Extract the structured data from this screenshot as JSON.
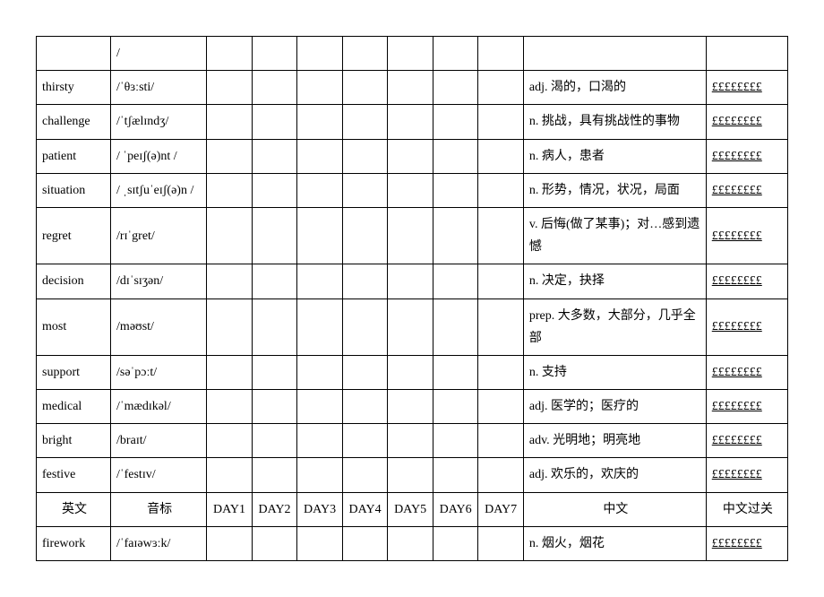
{
  "headers": {
    "english": "英文",
    "ipa": "音标",
    "day1": "DAY1",
    "day2": "DAY2",
    "day3": "DAY3",
    "day4": "DAY4",
    "day5": "DAY5",
    "day6": "DAY6",
    "day7": "DAY7",
    "chinese": "中文",
    "pass": "中文过关"
  },
  "pass_placeholder": "££££££££",
  "rows": {
    "top": {
      "en": "",
      "ipa": "/",
      "cn": ""
    },
    "thirsty": {
      "en": "thirsty",
      "ipa": "/ˈθɜːsti/",
      "cn": "adj. 渴的，口渴的"
    },
    "challenge": {
      "en": "challenge",
      "ipa": "/ˈtʃælɪndʒ/",
      "cn": "n. 挑战，具有挑战性的事物"
    },
    "patient": {
      "en": "patient",
      "ipa": "/ ˈpeɪʃ(ə)nt /",
      "cn": "n. 病人，患者"
    },
    "situation": {
      "en": "situation",
      "ipa": "/ ˌsɪtʃuˈeɪʃ(ə)n /",
      "cn": "n. 形势，情况，状况，局面"
    },
    "regret": {
      "en": "regret",
      "ipa": "/rɪˈgret/",
      "cn": "v. 后悔(做了某事)；对…感到遗憾"
    },
    "decision": {
      "en": "decision",
      "ipa": "/dɪˈsɪʒən/",
      "cn": "n. 决定，抉择"
    },
    "most": {
      "en": "most",
      "ipa": "/məʊst/",
      "cn": "prep. 大多数，大部分，几乎全部"
    },
    "support": {
      "en": "support",
      "ipa": "/səˈpɔːt/",
      "cn": "n. 支持"
    },
    "medical": {
      "en": "medical",
      "ipa": "/ˈmædɪkəl/",
      "cn": "adj. 医学的；医疗的"
    },
    "bright": {
      "en": "bright",
      "ipa": "/braɪt/",
      "cn": "adv. 光明地；明亮地"
    },
    "festive": {
      "en": "festive",
      "ipa": "/ˈfestɪv/",
      "cn": "adj. 欢乐的，欢庆的"
    },
    "firework": {
      "en": "firework",
      "ipa": "/ˈfaɪəwɜːk/",
      "cn": "n. 烟火，烟花"
    }
  }
}
